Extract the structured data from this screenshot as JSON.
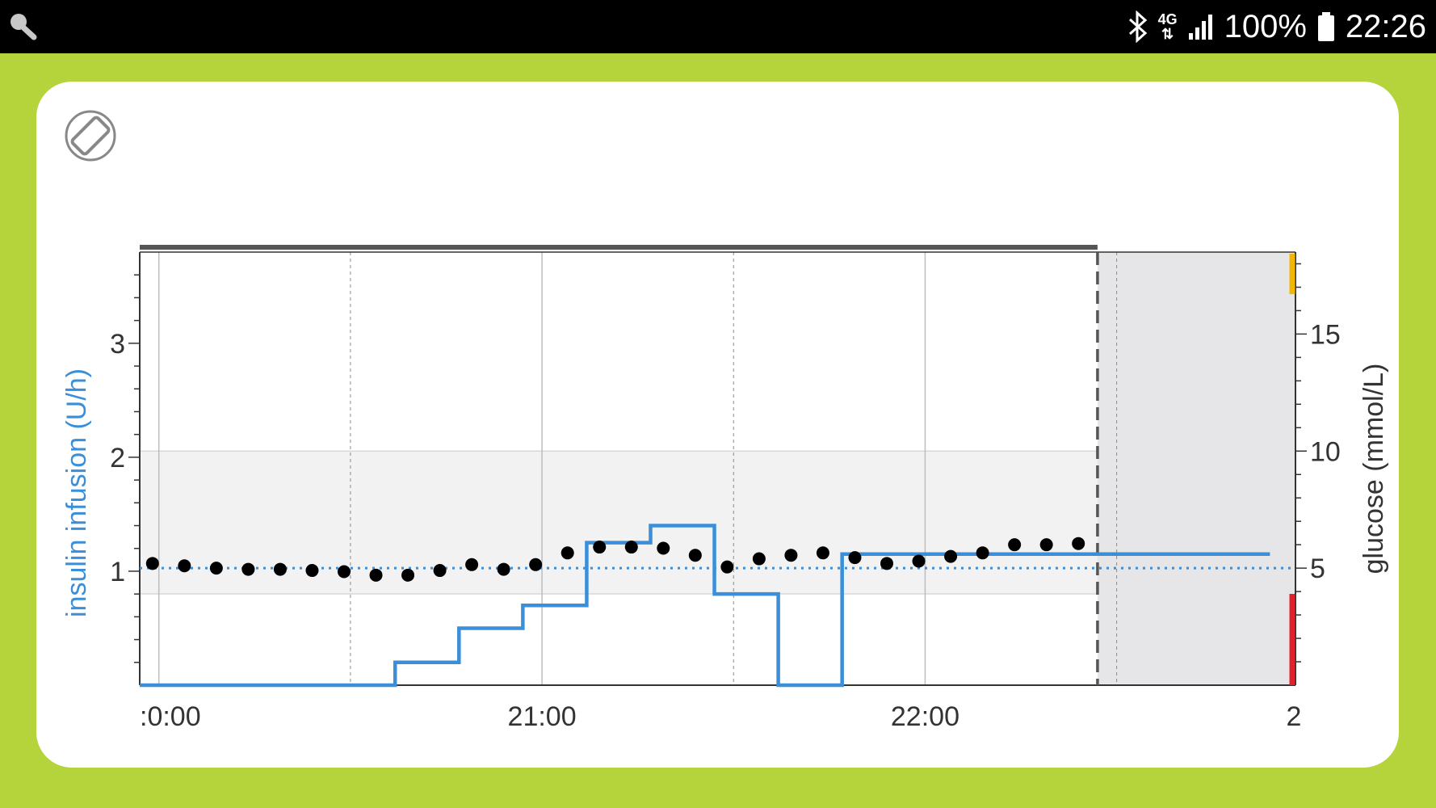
{
  "status_bar": {
    "battery_text": "100%",
    "time": "22:26",
    "network": "4G",
    "icons": [
      "search-icon",
      "bluetooth-icon",
      "signal-icon",
      "battery-icon"
    ]
  },
  "rotate_icon": "screen-rotation-icon",
  "colors": {
    "background": "#b5d43c",
    "insulin": "#3a8fd8",
    "glucose": "#000000",
    "target_range_fill": "#f2f2f3",
    "forecast_fill": "#e6e6e8",
    "high_marker": "#f2b705",
    "low_marker": "#e0202a"
  },
  "chart_data": {
    "type": "line",
    "ylabel_left": "insulin infusion (U/h)",
    "ylabel_right": "glucose (mmol/L)",
    "x_tick_labels": [
      ":0:00",
      "21:00",
      "22:00",
      "2"
    ],
    "x_tick_values": [
      "20:00",
      "21:00",
      "22:00",
      "23:00"
    ],
    "xlim": [
      "19:57",
      "22:58"
    ],
    "ylim_left": [
      0,
      3.8
    ],
    "ylim_right": [
      0,
      18.5
    ],
    "y_ticks_left": [
      1,
      2,
      3
    ],
    "y_ticks_right": [
      5,
      10,
      15
    ],
    "target_range_glucose": [
      3.9,
      10
    ],
    "reference_line_glucose": 5,
    "now": "22:27",
    "series": [
      {
        "kind": "step",
        "axis": "left",
        "x": [
          "19:57",
          "20:37",
          "20:47",
          "20:57",
          "21:07",
          "21:17",
          "21:27",
          "21:37",
          "21:47",
          "22:27",
          "22:58"
        ],
        "y": [
          0,
          0.2,
          0.5,
          0.7,
          1.25,
          1.4,
          0.8,
          0,
          1.15,
          1.15,
          1.15
        ],
        "end": "22:54"
      },
      {
        "kind": "scatter",
        "axis": "right",
        "x": [
          "19:59",
          "20:04",
          "20:09",
          "20:14",
          "20:19",
          "20:24",
          "20:29",
          "20:34",
          "20:39",
          "20:44",
          "20:49",
          "20:54",
          "20:59",
          "21:04",
          "21:09",
          "21:14",
          "21:19",
          "21:24",
          "21:29",
          "21:34",
          "21:39",
          "21:44",
          "21:49",
          "21:54",
          "21:59",
          "22:04",
          "22:09",
          "22:14",
          "22:19",
          "22:24"
        ],
        "y": [
          5.2,
          5.1,
          5.0,
          4.95,
          4.95,
          4.9,
          4.85,
          4.7,
          4.7,
          4.9,
          5.15,
          4.95,
          5.15,
          5.65,
          5.9,
          5.9,
          5.85,
          5.55,
          5.05,
          5.4,
          5.55,
          5.65,
          5.45,
          5.2,
          5.3,
          5.5,
          5.65,
          6.0,
          6.0,
          6.05
        ]
      }
    ]
  }
}
